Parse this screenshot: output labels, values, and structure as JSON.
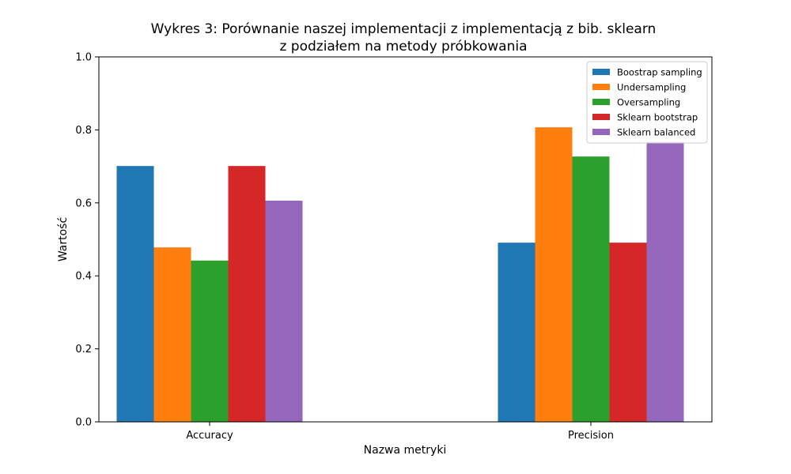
{
  "chart_data": {
    "type": "bar",
    "title_line1": "Wykres 3: Porównanie naszej implementacji z implementacją z bib. sklearn",
    "title_line2": "z podziałem na metody próbkowania",
    "xlabel": "Nazwa metryki",
    "ylabel": "Wartość",
    "ylim": [
      0,
      1.0
    ],
    "yticks": [
      "0.0",
      "0.2",
      "0.4",
      "0.6",
      "0.8",
      "1.0"
    ],
    "categories": [
      "Accuracy",
      "Precision"
    ],
    "legend_position": "top-right",
    "grid": false,
    "series": [
      {
        "name": "Boostrap sampling",
        "color": "#1f77b4",
        "values": [
          0.701,
          0.491
        ]
      },
      {
        "name": "Undersampling",
        "color": "#ff7f0e",
        "values": [
          0.478,
          0.807
        ]
      },
      {
        "name": "Oversampling",
        "color": "#2ca02c",
        "values": [
          0.442,
          0.727
        ]
      },
      {
        "name": "Sklearn bootstrap",
        "color": "#d62728",
        "values": [
          0.701,
          0.491
        ]
      },
      {
        "name": "Sklearn balanced",
        "color": "#9467bd",
        "values": [
          0.606,
          0.767
        ]
      }
    ]
  }
}
